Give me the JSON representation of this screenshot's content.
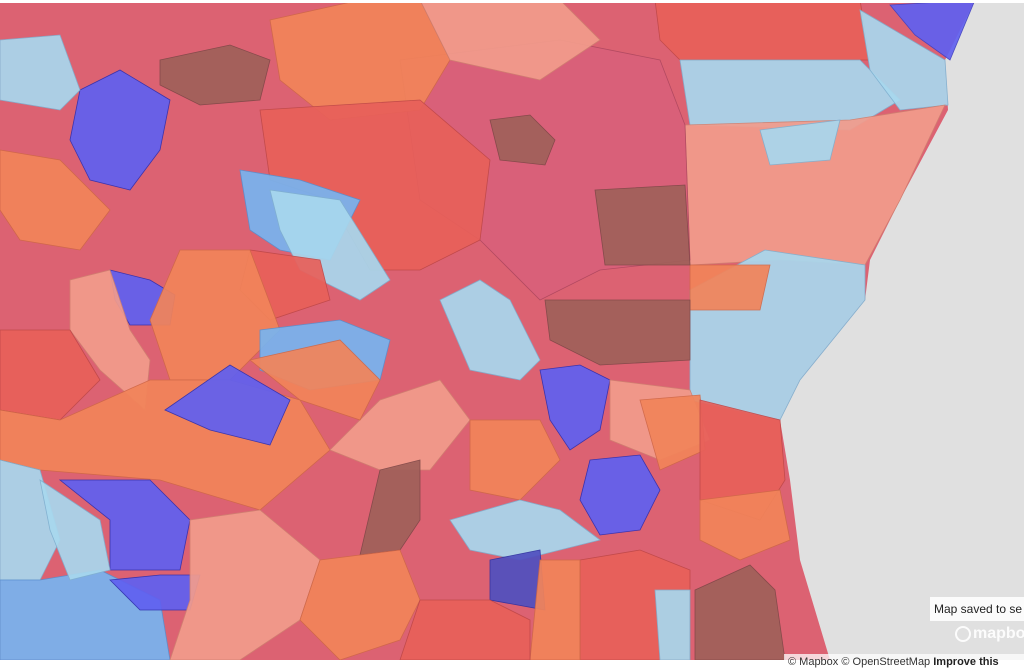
{
  "notice": "Map saved to se",
  "logo": "mapbox",
  "attribution": {
    "mapbox": "© Mapbox",
    "osm": "© OpenStreetMap",
    "improve": "Improve this"
  }
}
